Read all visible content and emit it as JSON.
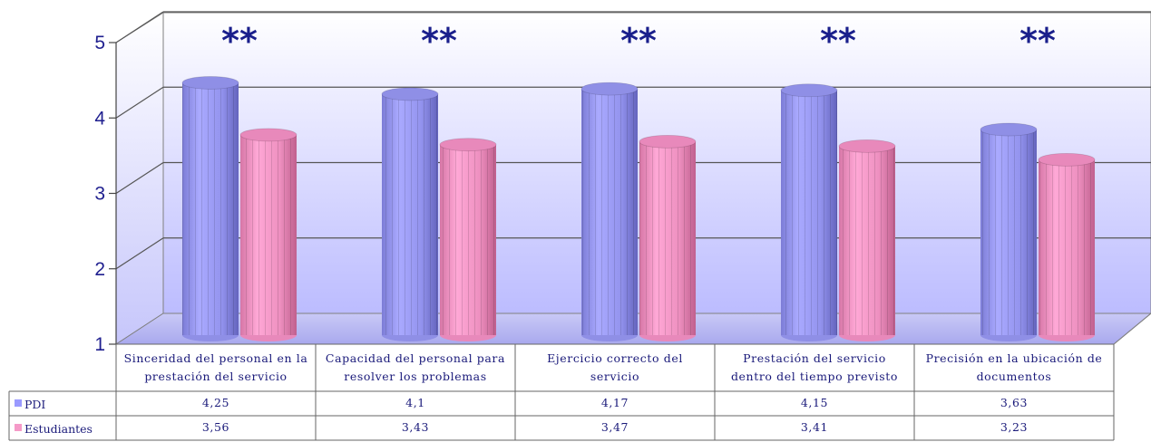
{
  "chart_data": {
    "type": "bar",
    "categories": [
      [
        "Sinceridad del personal en la",
        "prestación del servicio"
      ],
      [
        "Capacidad del personal para",
        "resolver los problemas"
      ],
      [
        "Ejercicio correcto del",
        "servicio"
      ],
      [
        "Prestación del servicio",
        "dentro del tiempo previsto"
      ],
      [
        "Precisión en la ubicación de",
        "documentos"
      ]
    ],
    "series": [
      {
        "name": "PDI",
        "values": [
          4.25,
          4.1,
          4.17,
          4.15,
          3.63
        ],
        "labels": [
          "4,25",
          "4,1",
          "4,17",
          "4,15",
          "3,63"
        ],
        "color": "#9a9aff"
      },
      {
        "name": "Estudiantes",
        "values": [
          3.56,
          3.43,
          3.47,
          3.41,
          3.23
        ],
        "labels": [
          "3,56",
          "3,43",
          "3,47",
          "3,41",
          "3,23"
        ],
        "color": "#f59ac8"
      }
    ],
    "yticks": [
      "1",
      "2",
      "3",
      "4",
      "5"
    ],
    "ylim": [
      1,
      5
    ],
    "annotations": [
      "**",
      "**",
      "**",
      "**",
      "**"
    ],
    "grid": true,
    "legend": "data-table",
    "style": "3d-cylinder"
  }
}
